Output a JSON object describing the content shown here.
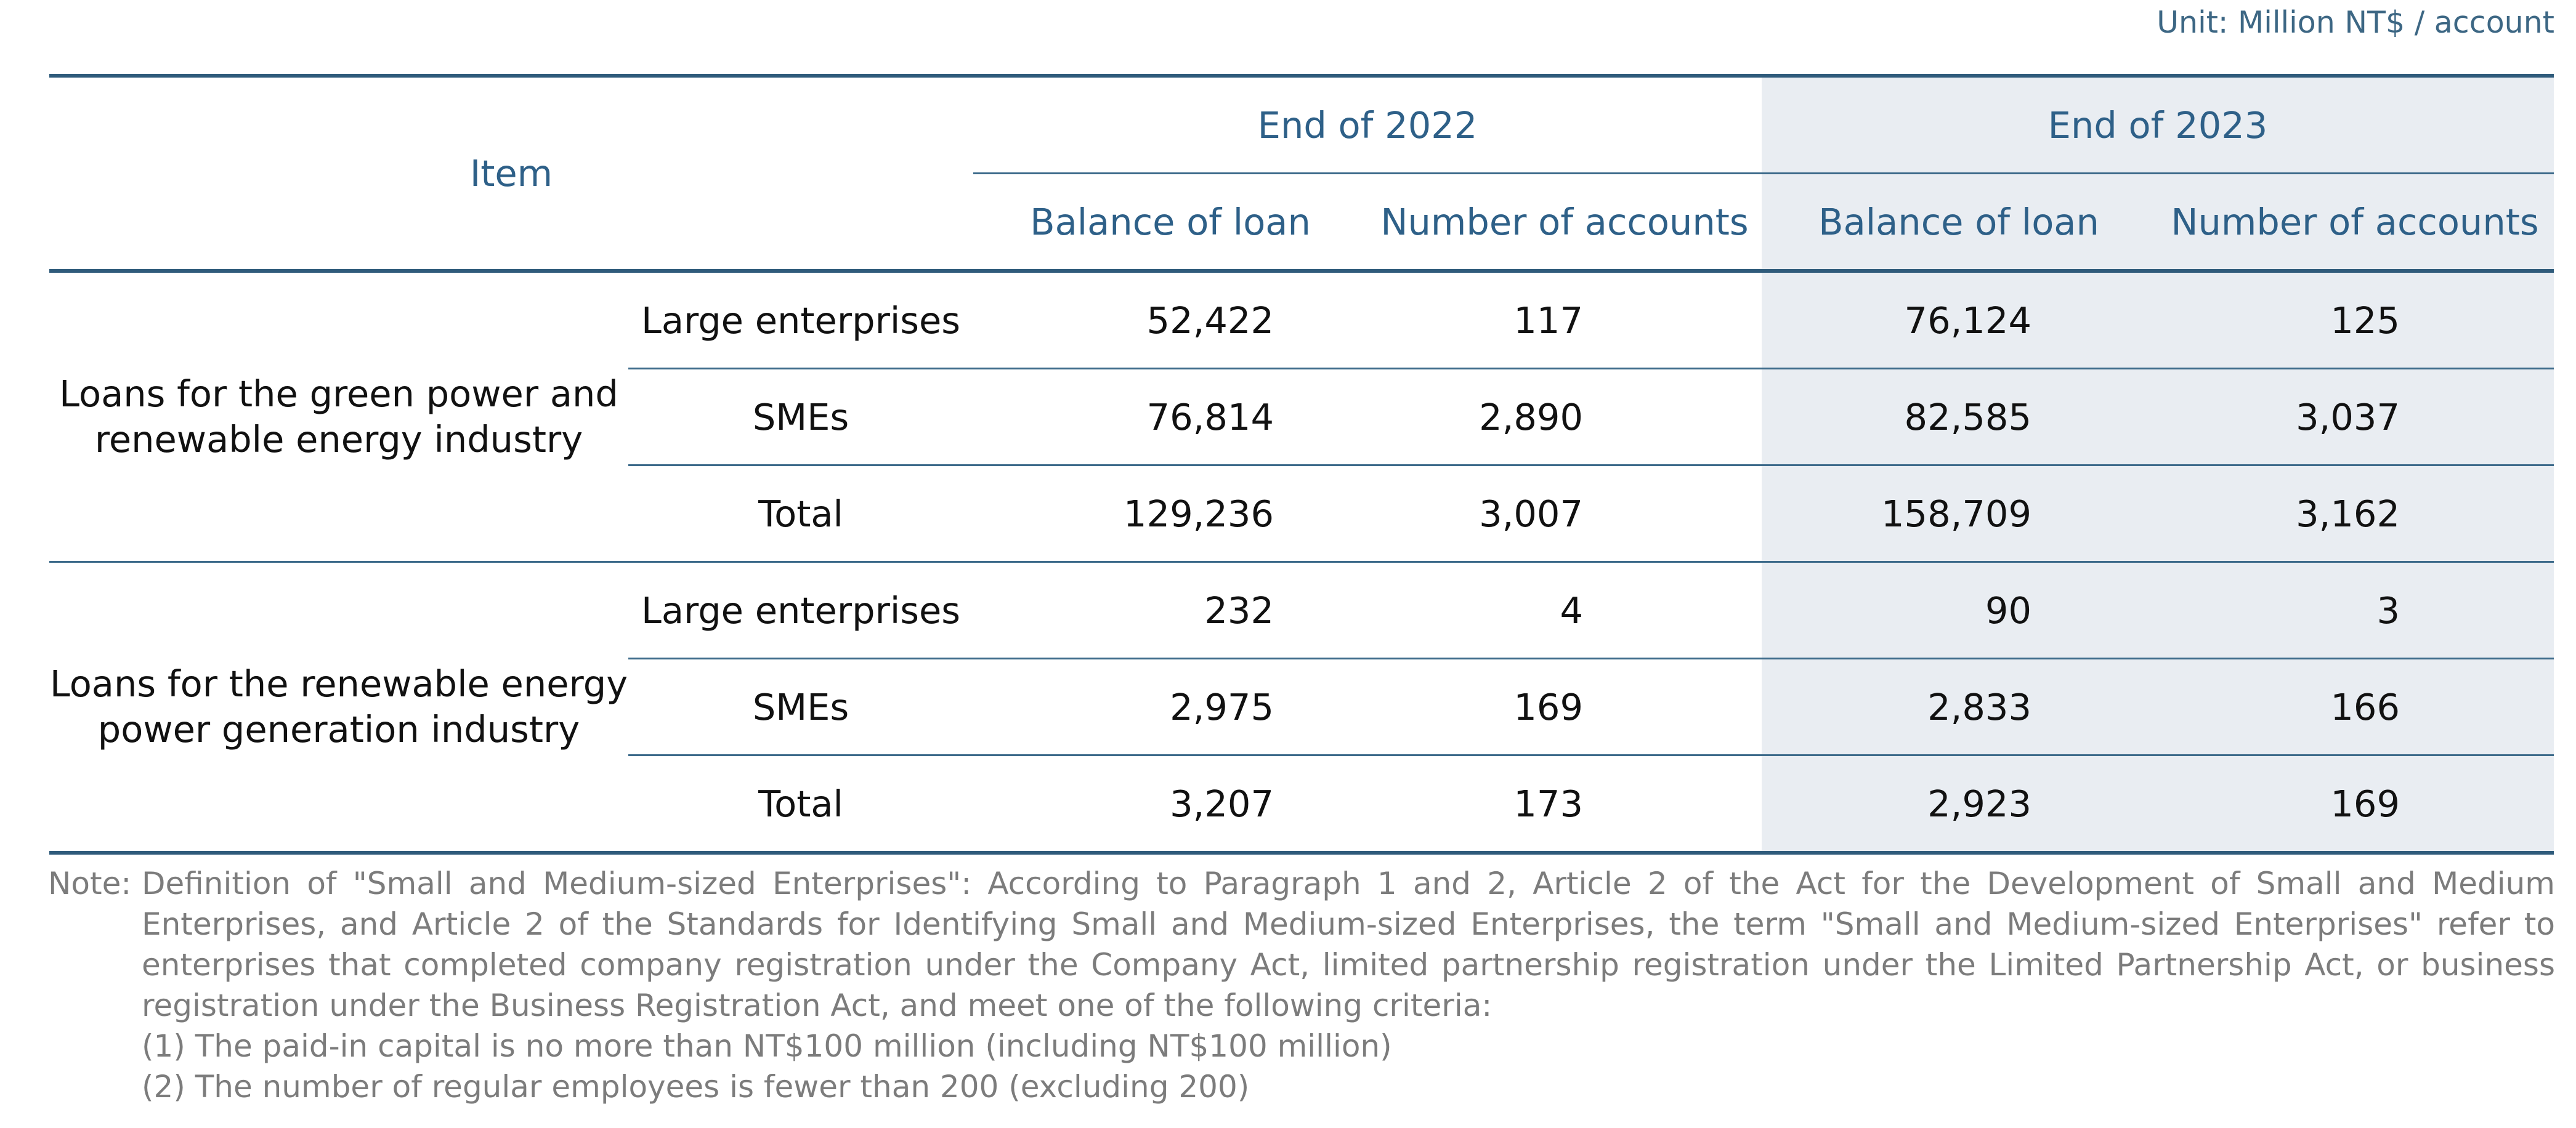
{
  "unit_label": "Unit: Million NT$ / account",
  "header": {
    "item": "Item",
    "period_2022": "End of 2022",
    "period_2023": "End of 2023",
    "balance_2022": "Balance of loan",
    "accounts_2022": "Number of accounts",
    "balance_2023": "Balance of loan",
    "accounts_2023": "Number of accounts"
  },
  "groups": [
    {
      "name": "Loans for the green power and renewable energy industry",
      "rows": [
        {
          "label": "Large enterprises",
          "balance_2022": "52,422",
          "accounts_2022": "117",
          "balance_2023": "76,124",
          "accounts_2023": "125"
        },
        {
          "label": "SMEs",
          "balance_2022": "76,814",
          "accounts_2022": "2,890",
          "balance_2023": "82,585",
          "accounts_2023": "3,037"
        },
        {
          "label": "Total",
          "balance_2022": "129,236",
          "accounts_2022": "3,007",
          "balance_2023": "158,709",
          "accounts_2023": "3,162"
        }
      ]
    },
    {
      "name": "Loans for the renewable energy power generation industry",
      "rows": [
        {
          "label": "Large enterprises",
          "balance_2022": "232",
          "accounts_2022": "4",
          "balance_2023": "90",
          "accounts_2023": "3"
        },
        {
          "label": "SMEs",
          "balance_2022": "2,975",
          "accounts_2022": "169",
          "balance_2023": "2,833",
          "accounts_2023": "166"
        },
        {
          "label": "Total",
          "balance_2022": "3,207",
          "accounts_2022": "173",
          "balance_2023": "2,923",
          "accounts_2023": "169"
        }
      ]
    }
  ],
  "note": {
    "label": "Note:",
    "text": "Definition of \"Small and Medium-sized Enterprises\": According to Paragraph 1 and 2, Article 2 of the Act for the Development of Small and Medium Enterprises, and Article 2 of the Standards for Identifying Small and Medium-sized Enterprises, the term \"Small and Medium-sized Enterprises\" refer to enterprises that completed company registration under the Company Act, limited partnership registration under the Limited Partnership Act, or business registration under the Business Registration Act, and meet one of the following criteria:",
    "criteria": [
      "(1) The paid-in capital is no more than NT$100 million (including NT$100 million)",
      "(2) The number of regular employees is fewer than 200 (excluding 200)"
    ]
  }
}
